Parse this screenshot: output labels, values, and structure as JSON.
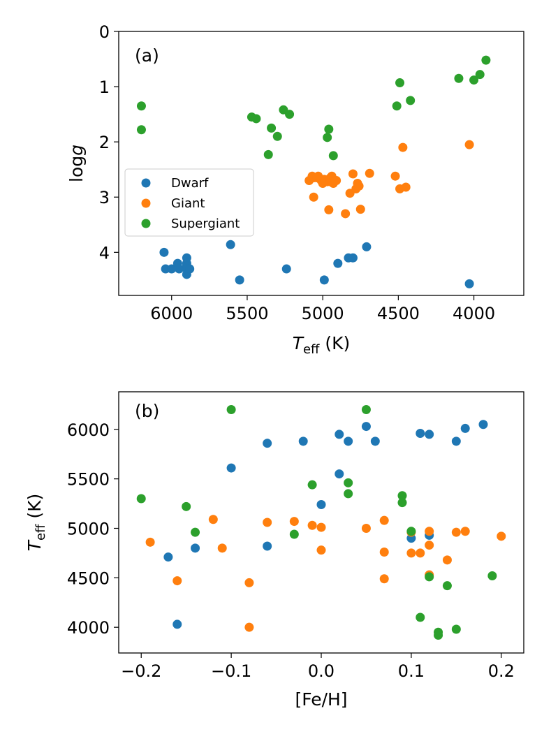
{
  "chart_data": [
    {
      "type": "scatter",
      "panel_label": "(a)",
      "xlabel": "T_eff (K)",
      "xlabel_main": "T",
      "xlabel_sub": "eff",
      "xlabel_unit": " (K)",
      "ylabel": "log g",
      "ylabel_main": "log",
      "ylabel_var": "g",
      "xlim": [
        6350,
        3670
      ],
      "ylim": [
        4.78,
        0
      ],
      "x_ticks": [
        6000,
        5500,
        5000,
        4500,
        4000
      ],
      "x_tick_labels": [
        "6000",
        "5500",
        "5000",
        "4500",
        "4000"
      ],
      "y_ticks": [
        0,
        1,
        2,
        3,
        4
      ],
      "y_tick_labels": [
        "0",
        "1",
        "2",
        "3",
        "4"
      ],
      "legend_position": "center-left",
      "legend": [
        "Dwarf",
        "Giant",
        "Supergiant"
      ],
      "series": [
        {
          "name": "Dwarf",
          "color": "#1f77b4",
          "points": [
            [
              6050,
              4.0
            ],
            [
              6040,
              4.3
            ],
            [
              6000,
              4.3
            ],
            [
              5960,
              4.2
            ],
            [
              5950,
              4.3
            ],
            [
              5900,
              4.1
            ],
            [
              5900,
              4.2
            ],
            [
              5900,
              4.25
            ],
            [
              5900,
              4.3
            ],
            [
              5900,
              4.4
            ],
            [
              5880,
              4.3
            ],
            [
              5610,
              3.86
            ],
            [
              5550,
              4.5
            ],
            [
              5240,
              4.3
            ],
            [
              4990,
              4.5
            ],
            [
              4900,
              4.2
            ],
            [
              4830,
              4.1
            ],
            [
              4800,
              4.1
            ],
            [
              4710,
              3.9
            ],
            [
              4030,
              4.57
            ]
          ]
        },
        {
          "name": "Giant",
          "color": "#ff7f0e",
          "points": [
            [
              5090,
              2.7
            ],
            [
              5070,
              2.62
            ],
            [
              5060,
              3.0
            ],
            [
              5060,
              2.65
            ],
            [
              5040,
              2.65
            ],
            [
              5030,
              2.62
            ],
            [
              5010,
              2.7
            ],
            [
              5000,
              2.75
            ],
            [
              4990,
              2.68
            ],
            [
              4970,
              2.72
            ],
            [
              4960,
              3.23
            ],
            [
              4950,
              2.7
            ],
            [
              4950,
              2.65
            ],
            [
              4940,
              2.62
            ],
            [
              4940,
              2.73
            ],
            [
              4930,
              2.75
            ],
            [
              4910,
              2.7
            ],
            [
              4850,
              3.3
            ],
            [
              4820,
              2.93
            ],
            [
              4800,
              2.58
            ],
            [
              4780,
              2.85
            ],
            [
              4770,
              2.75
            ],
            [
              4760,
              2.8
            ],
            [
              4750,
              3.22
            ],
            [
              4690,
              2.57
            ],
            [
              4520,
              2.62
            ],
            [
              4490,
              2.85
            ],
            [
              4470,
              2.1
            ],
            [
              4450,
              2.82
            ],
            [
              4030,
              2.05
            ]
          ]
        },
        {
          "name": "Supergiant",
          "color": "#2ca02c",
          "points": [
            [
              6200,
              1.35
            ],
            [
              6200,
              1.78
            ],
            [
              5470,
              1.55
            ],
            [
              5440,
              1.58
            ],
            [
              5360,
              2.23
            ],
            [
              5340,
              1.75
            ],
            [
              5300,
              1.9
            ],
            [
              5260,
              1.42
            ],
            [
              5220,
              1.5
            ],
            [
              4970,
              1.92
            ],
            [
              4960,
              1.77
            ],
            [
              4930,
              2.25
            ],
            [
              4510,
              1.35
            ],
            [
              4490,
              0.93
            ],
            [
              4420,
              1.25
            ],
            [
              4100,
              0.85
            ],
            [
              4000,
              0.88
            ],
            [
              3960,
              0.78
            ],
            [
              3920,
              0.52
            ]
          ]
        }
      ]
    },
    {
      "type": "scatter",
      "panel_label": "(b)",
      "xlabel": "[Fe/H]",
      "ylabel": "T_eff (K)",
      "ylabel_main": "T",
      "ylabel_sub": "eff",
      "ylabel_unit": " (K)",
      "xlim": [
        -0.225,
        0.225
      ],
      "ylim": [
        3740,
        6380
      ],
      "x_ticks": [
        -0.2,
        -0.1,
        0.0,
        0.1,
        0.2
      ],
      "x_tick_labels": [
        "−0.2",
        "−0.1",
        "0.0",
        "0.1",
        "0.2"
      ],
      "y_ticks": [
        4000,
        4500,
        5000,
        5500,
        6000
      ],
      "y_tick_labels": [
        "4000",
        "4500",
        "5000",
        "5500",
        "6000"
      ],
      "series": [
        {
          "name": "Dwarf",
          "color": "#1f77b4",
          "points": [
            [
              -0.17,
              4710
            ],
            [
              -0.16,
              4030
            ],
            [
              -0.14,
              4800
            ],
            [
              -0.1,
              5610
            ],
            [
              -0.06,
              5860
            ],
            [
              -0.06,
              4820
            ],
            [
              -0.02,
              5880
            ],
            [
              0.0,
              5240
            ],
            [
              0.02,
              5950
            ],
            [
              0.02,
              5550
            ],
            [
              0.03,
              5880
            ],
            [
              0.05,
              6030
            ],
            [
              0.06,
              5880
            ],
            [
              0.1,
              4900
            ],
            [
              0.11,
              5960
            ],
            [
              0.12,
              5950
            ],
            [
              0.12,
              4930
            ],
            [
              0.15,
              5880
            ],
            [
              0.16,
              6010
            ],
            [
              0.18,
              6050
            ]
          ]
        },
        {
          "name": "Giant",
          "color": "#ff7f0e",
          "points": [
            [
              -0.19,
              4860
            ],
            [
              -0.16,
              4470
            ],
            [
              -0.12,
              5090
            ],
            [
              -0.11,
              4800
            ],
            [
              -0.08,
              4450
            ],
            [
              -0.08,
              4000
            ],
            [
              -0.06,
              5060
            ],
            [
              -0.03,
              5070
            ],
            [
              -0.01,
              5030
            ],
            [
              0.0,
              5010
            ],
            [
              0.0,
              4780
            ],
            [
              0.05,
              5000
            ],
            [
              0.07,
              5080
            ],
            [
              0.07,
              4760
            ],
            [
              0.07,
              4490
            ],
            [
              0.1,
              4960
            ],
            [
              0.1,
              4750
            ],
            [
              0.11,
              4750
            ],
            [
              0.12,
              4970
            ],
            [
              0.12,
              4830
            ],
            [
              0.12,
              4530
            ],
            [
              0.14,
              4680
            ],
            [
              0.15,
              4960
            ],
            [
              0.16,
              4970
            ],
            [
              0.2,
              4920
            ]
          ]
        },
        {
          "name": "Supergiant",
          "color": "#2ca02c",
          "points": [
            [
              -0.2,
              5300
            ],
            [
              -0.15,
              5220
            ],
            [
              -0.14,
              4960
            ],
            [
              -0.1,
              6200
            ],
            [
              -0.03,
              4940
            ],
            [
              -0.01,
              5440
            ],
            [
              0.03,
              5460
            ],
            [
              0.03,
              5350
            ],
            [
              0.05,
              6200
            ],
            [
              0.09,
              5330
            ],
            [
              0.09,
              5260
            ],
            [
              0.1,
              4970
            ],
            [
              0.11,
              4100
            ],
            [
              0.12,
              4510
            ],
            [
              0.13,
              3950
            ],
            [
              0.13,
              3920
            ],
            [
              0.14,
              4420
            ],
            [
              0.15,
              3980
            ],
            [
              0.19,
              4520
            ]
          ]
        }
      ]
    }
  ]
}
